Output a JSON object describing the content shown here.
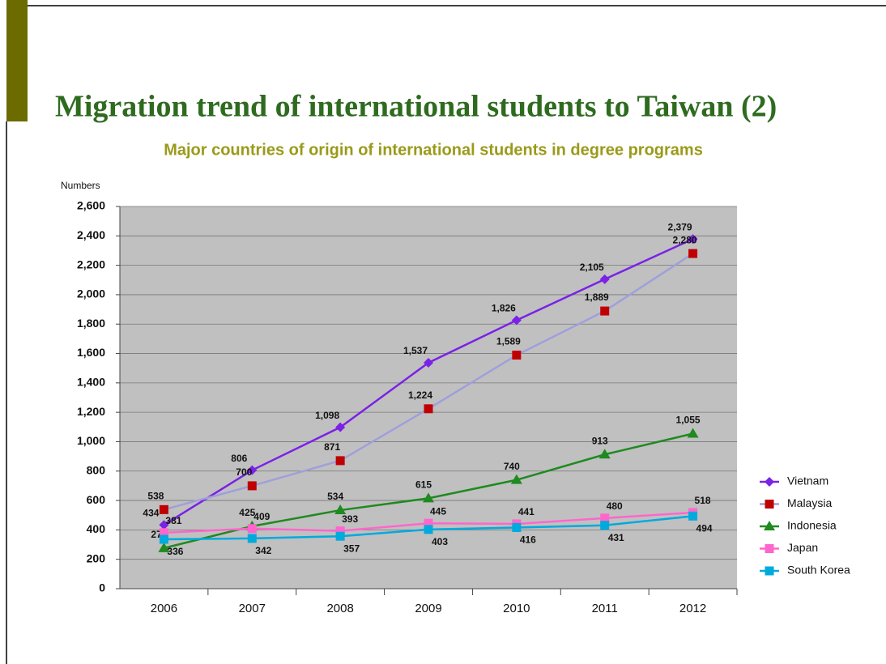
{
  "slide_title": "Migration trend of international students to Taiwan (2)",
  "chart_data": {
    "type": "line",
    "title": "Major countries of origin of international students in degree programs",
    "y_label": "Numbers",
    "categories": [
      "2006",
      "2007",
      "2008",
      "2009",
      "2010",
      "2011",
      "2012"
    ],
    "ylim": [
      0,
      2600
    ],
    "yticks": [
      0,
      200,
      400,
      600,
      800,
      {
        "value": 1000,
        "label": "1,000"
      },
      {
        "value": 1200,
        "label": "1,200"
      },
      {
        "value": 1400,
        "label": "1,400"
      },
      {
        "value": 1600,
        "label": "1,600"
      },
      {
        "value": 1800,
        "label": "1,800"
      },
      {
        "value": 2000,
        "label": "2,000"
      },
      {
        "value": 2200,
        "label": "2,200"
      },
      {
        "value": 2400,
        "label": "2,400"
      },
      {
        "value": 2600,
        "label": "2,600"
      }
    ],
    "grid": true,
    "legend": "right",
    "series": [
      {
        "name": "Vietnam",
        "color": "#7a22e6",
        "marker": "diamond",
        "marker_color": "#7a22e6",
        "values": [
          434,
          806,
          1098,
          1537,
          1826,
          2105,
          2379
        ],
        "value_labels": [
          "434",
          "806",
          "1,098",
          "1,537",
          "1,826",
          "2,105",
          "2,379"
        ]
      },
      {
        "name": "Malaysia",
        "color": "#9f9fdc",
        "marker": "square",
        "marker_color": "#c00000",
        "values": [
          538,
          700,
          871,
          1224,
          1589,
          1889,
          2280
        ],
        "value_labels": [
          "538",
          "700",
          "871",
          "1,224",
          "1,589",
          "1,889",
          "2,280"
        ]
      },
      {
        "name": "Indonesia",
        "color": "#1f8a1f",
        "marker": "triangle",
        "marker_color": "#1f8a1f",
        "values": [
          276,
          425,
          534,
          615,
          740,
          913,
          1055
        ],
        "value_labels": [
          "276",
          "425",
          "534",
          "615",
          "740",
          "913",
          "1,055"
        ]
      },
      {
        "name": "Japan",
        "color": "#ff66cc",
        "marker": "square",
        "marker_color": "#ff66cc",
        "values": [
          381,
          409,
          393,
          445,
          441,
          480,
          518
        ],
        "value_labels": [
          "381",
          "409",
          "393",
          "445",
          "441",
          "480",
          "518"
        ]
      },
      {
        "name": "South Korea",
        "color": "#00aadd",
        "marker": "square",
        "marker_color": "#00aadd",
        "values": [
          336,
          342,
          357,
          403,
          416,
          431,
          494
        ],
        "value_labels": [
          "336",
          "342",
          "357",
          "403",
          "416",
          "431",
          "494"
        ]
      }
    ]
  }
}
